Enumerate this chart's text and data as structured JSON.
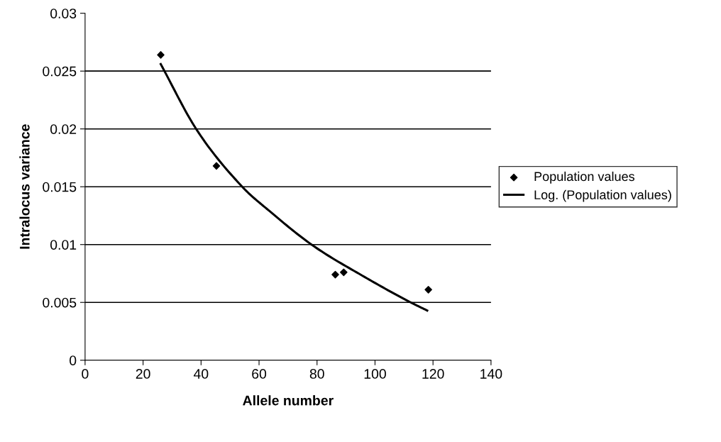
{
  "chart_data": {
    "type": "scatter",
    "xlabel": "Allele number",
    "ylabel": "Intralocus variance",
    "xlim": [
      0,
      140
    ],
    "xticks": [
      0,
      20,
      40,
      60,
      80,
      100,
      120,
      140
    ],
    "ylim": [
      0,
      0.03
    ],
    "yticks": [
      0,
      0.005,
      0.01,
      0.015,
      0.02,
      0.025,
      0.03
    ],
    "grid": "y",
    "legend": "right",
    "marker": "diamond",
    "series": [
      {
        "name": "Population values",
        "color": "#000000",
        "x": [
          26.1,
          45.3,
          86.3,
          89.2,
          118.4
        ],
        "values": [
          0.0264,
          0.0168,
          0.0074,
          0.0076,
          0.0061
        ]
      },
      {
        "name": "Log. (Population values)",
        "type": "line",
        "color": "#000000",
        "marker": "none",
        "line_style": "solid",
        "x": [
          26.1,
          38.3,
          54.2,
          63.6,
          78.1,
          96.4,
          112.3,
          118.0
        ],
        "values": [
          0.0256,
          0.02,
          0.015,
          0.0129,
          0.01,
          0.0072,
          0.005,
          0.0043
        ]
      }
    ]
  }
}
